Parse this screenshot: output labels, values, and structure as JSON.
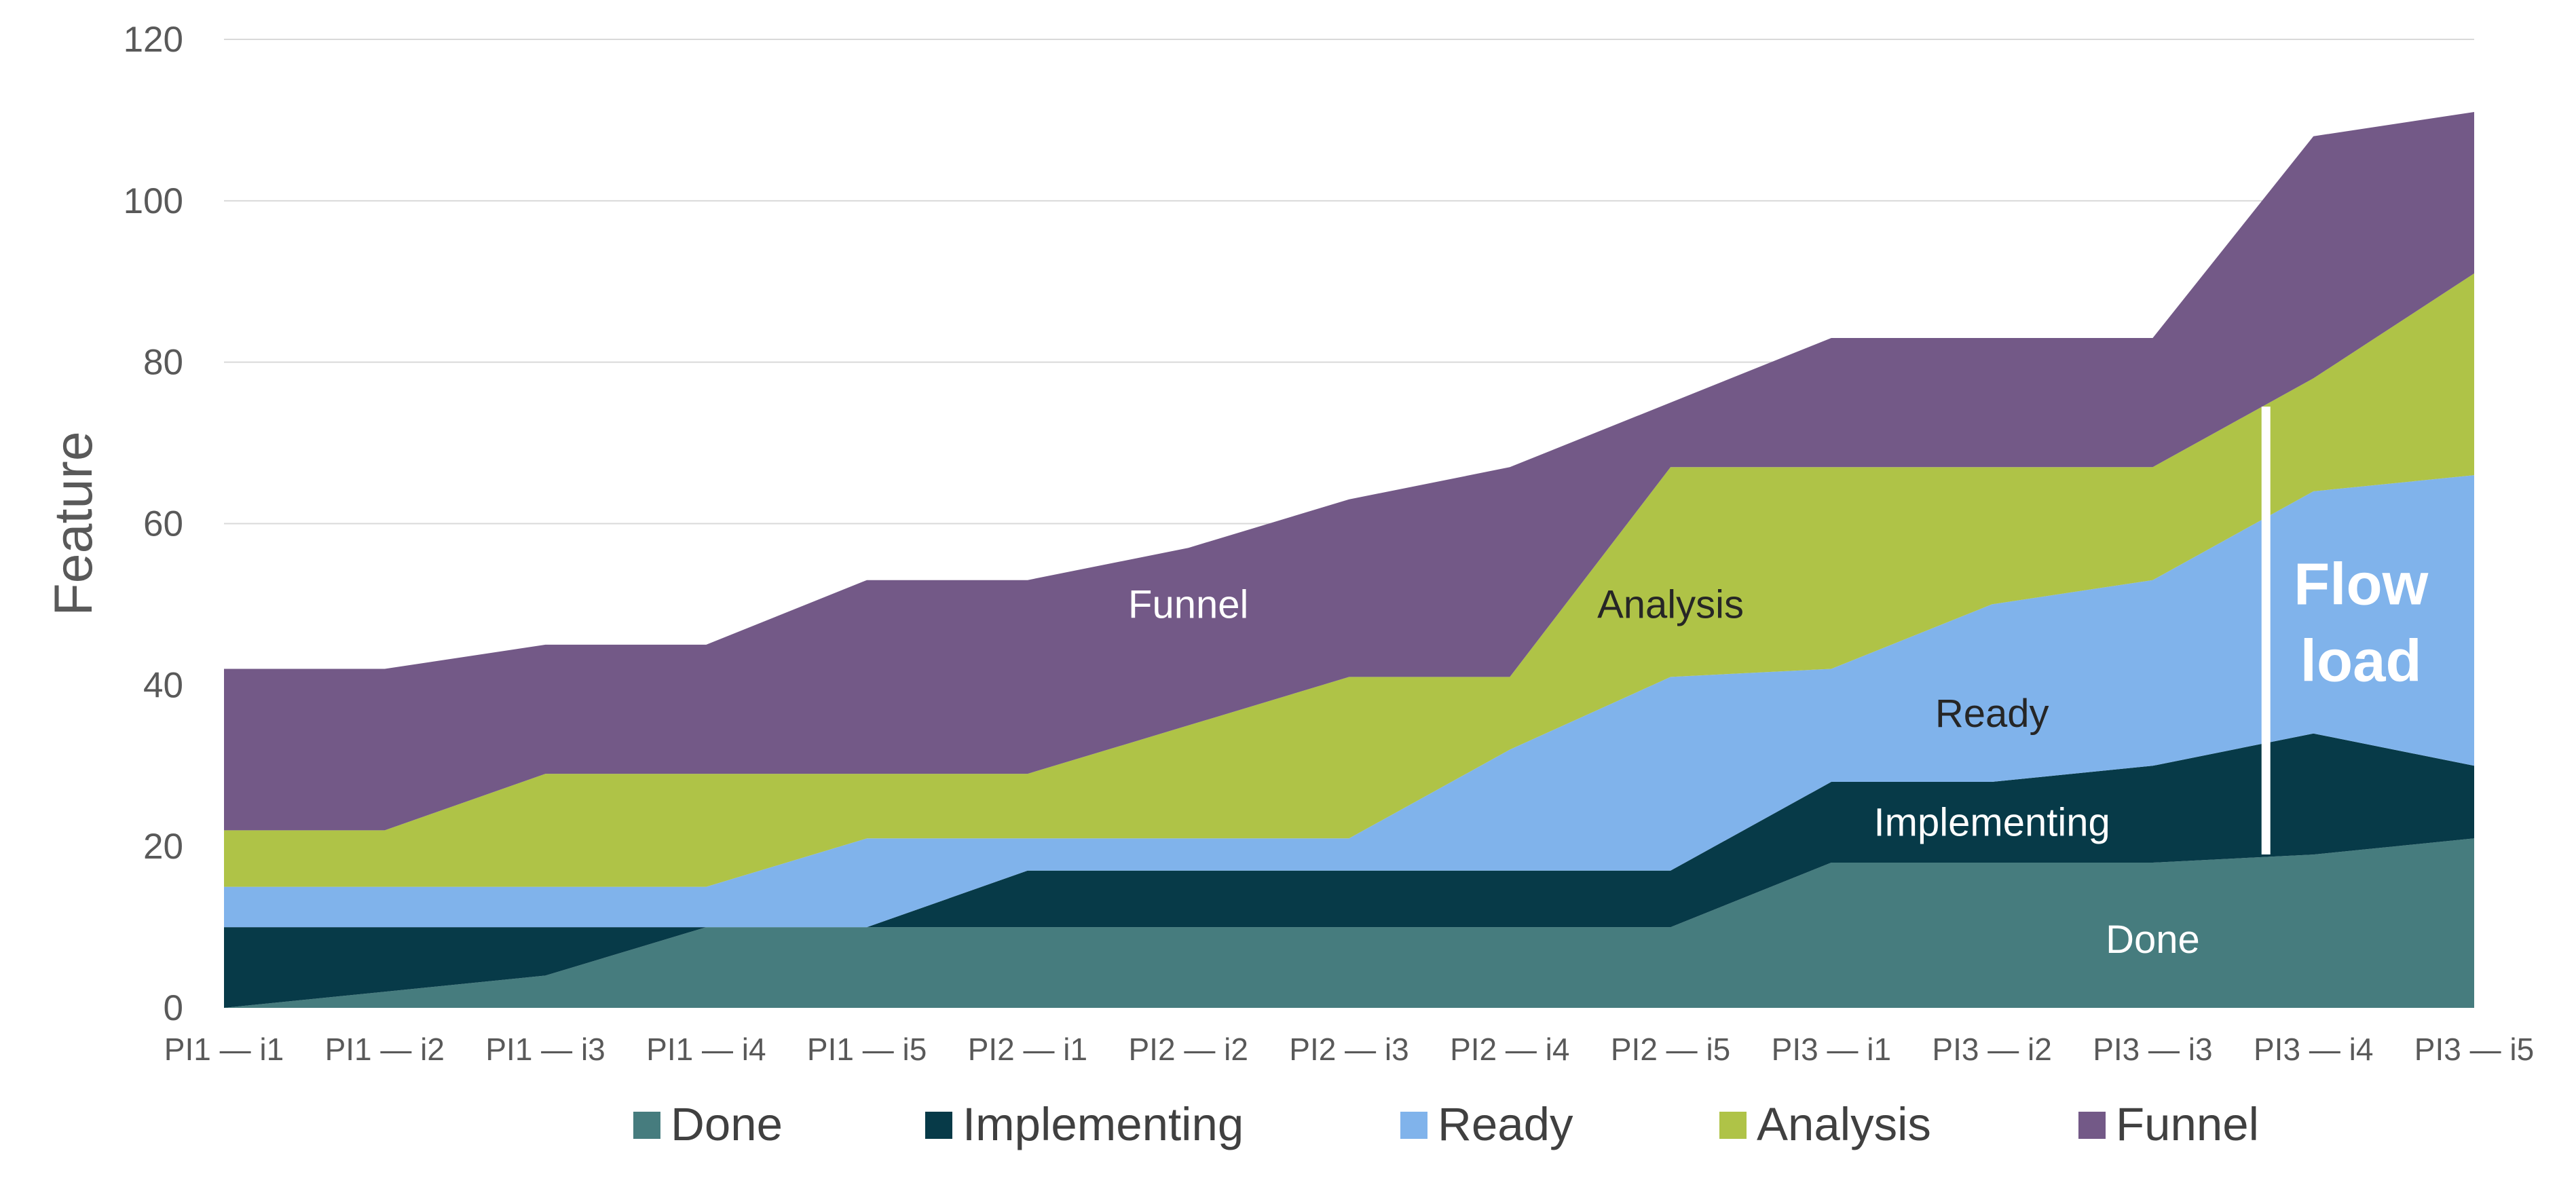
{
  "chart_data": {
    "type": "area",
    "stacked": true,
    "title": "",
    "xlabel": "",
    "ylabel": "Feature",
    "ylim": [
      0,
      120
    ],
    "yticks": [
      0,
      20,
      40,
      60,
      80,
      100,
      120
    ],
    "grid": true,
    "legend_position": "bottom",
    "categories": [
      "PI1 — i1",
      "PI1 — i2",
      "PI1 — i3",
      "PI1 — i4",
      "PI1 — i5",
      "PI2 — i1",
      "PI2 — i2",
      "PI2 — i3",
      "PI2 — i4",
      "PI2 — i5",
      "PI3 — i1",
      "PI3 — i2",
      "PI3 — i3",
      "PI3 — i4",
      "PI3 — i5"
    ],
    "series": [
      {
        "name": "Done",
        "color": "#467c7e",
        "values": [
          0,
          2,
          4,
          10,
          10,
          10,
          10,
          10,
          10,
          10,
          18,
          18,
          18,
          19,
          21
        ]
      },
      {
        "name": "Implementing",
        "color": "#073a48",
        "values": [
          10,
          8,
          6,
          0,
          0,
          7,
          7,
          7,
          7,
          7,
          10,
          10,
          12,
          15,
          9
        ]
      },
      {
        "name": "Ready",
        "color": "#80b3eb",
        "values": [
          5,
          5,
          5,
          5,
          11,
          4,
          4,
          4,
          15,
          24,
          14,
          22,
          23,
          30,
          36
        ]
      },
      {
        "name": "Analysis",
        "color": "#afc347",
        "values": [
          7,
          7,
          14,
          14,
          8,
          8,
          14,
          20,
          9,
          26,
          25,
          17,
          14,
          14,
          25
        ]
      },
      {
        "name": "Funnel",
        "color": "#735987",
        "values": [
          20,
          20,
          16,
          16,
          24,
          24,
          22,
          22,
          26,
          8,
          16,
          16,
          16,
          30,
          20
        ]
      }
    ],
    "annotations": [
      {
        "text": "Funnel",
        "x": "PI2 — i2",
        "y": 50,
        "color": "#ffffff"
      },
      {
        "text": "Analysis",
        "x": "PI2 — i5",
        "y": 50,
        "color": "#262626"
      },
      {
        "text": "Ready",
        "x": "PI3 — i2",
        "y": 36.5,
        "color": "#262626"
      },
      {
        "text": "Implementing",
        "x": "PI3 — i2",
        "y": 23,
        "color": "#ffffff"
      },
      {
        "text": "Done",
        "x": "PI3 — i3",
        "y": 8.5,
        "color": "#ffffff"
      }
    ],
    "flow_load": {
      "label_line1": "Flow",
      "label_line2": "load",
      "x": "PI3 — i4",
      "y_from": 19,
      "y_to": 74.5
    }
  }
}
